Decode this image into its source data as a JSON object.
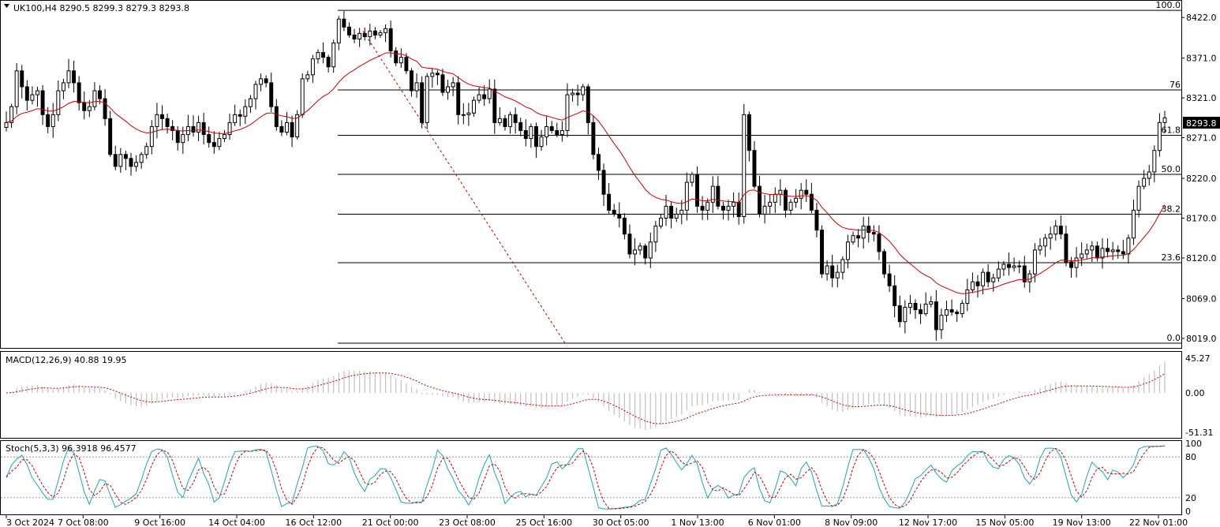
{
  "symbol_header": "UK100,H4  8290.5 8299.3 8279.3 8293.8",
  "macd_header": "MACD(12,26,9) 40.88 19.95",
  "stoch_header": "Stoch(5,3,3) 96.3918 96.4577",
  "current_price_label": "8293.8",
  "colors": {
    "background": "#ffffff",
    "bull_candle": "#ffffff",
    "bear_candle": "#000000",
    "moving_average": "#cc0000",
    "macd_histogram": "#c0c0c0",
    "macd_signal": "#cc0000",
    "stoch_main": "#1aa6b7",
    "stoch_signal": "#cc0000",
    "fib_lines": "#000000"
  },
  "chart_data": [
    {
      "type": "candlestick",
      "title": "UK100,H4",
      "price_ticks": [
        "8422.0",
        "8371.0",
        "8321.0",
        "8271.0",
        "8220.0",
        "8170.0",
        "8120.0",
        "8069.0",
        "8019.0"
      ],
      "price_tick_values": [
        8422.0,
        8371.0,
        8321.0,
        8271.0,
        8220.0,
        8170.0,
        8120.0,
        8069.0,
        8019.0
      ],
      "ylim": [
        8010,
        8440
      ],
      "x_ticks": [
        "3 Oct 2024",
        "7 Oct 08:00",
        "9 Oct 16:00",
        "14 Oct 04:00",
        "16 Oct 12:00",
        "21 Oct 00:00",
        "23 Oct 08:00",
        "25 Oct 16:00",
        "30 Oct 05:00",
        "1 Nov 13:00",
        "6 Nov 01:00",
        "8 Nov 09:00",
        "12 Nov 17:00",
        "15 Nov 05:00",
        "19 Nov 13:00",
        "22 Nov 01:00"
      ],
      "fibonacci": {
        "levels": [
          {
            "label": "100.0",
            "price": 8431
          },
          {
            "label": "76",
            "price": 8331
          },
          {
            "label": "61.8",
            "price": 8274
          },
          {
            "label": "50.0",
            "price": 8225
          },
          {
            "label": "38.2",
            "price": 8175
          },
          {
            "label": "23.6",
            "price": 8114
          },
          {
            "label": "0.0",
            "price": 8013
          }
        ]
      },
      "closes": [
        8290,
        8310,
        8355,
        8335,
        8318,
        8325,
        8330,
        8300,
        8285,
        8300,
        8330,
        8340,
        8355,
        8340,
        8315,
        8305,
        8310,
        8330,
        8320,
        8295,
        8250,
        8235,
        8250,
        8245,
        8235,
        8240,
        8250,
        8260,
        8285,
        8300,
        8295,
        8285,
        8280,
        8265,
        8275,
        8285,
        8278,
        8290,
        8275,
        8265,
        8260,
        8270,
        8275,
        8290,
        8300,
        8298,
        8310,
        8320,
        8338,
        8345,
        8340,
        8310,
        8285,
        8278,
        8290,
        8272,
        8300,
        8345,
        8350,
        8370,
        8378,
        8372,
        8360,
        8390,
        8420,
        8410,
        8400,
        8395,
        8402,
        8398,
        8405,
        8400,
        8403,
        8408,
        8380,
        8365,
        8372,
        8355,
        8330,
        8340,
        8290,
        8348,
        8352,
        8350,
        8328,
        8335,
        8340,
        8300,
        8300,
        8302,
        8318,
        8325,
        8320,
        8332,
        8290,
        8295,
        8285,
        8300,
        8290,
        8280,
        8270,
        8285,
        8260,
        8272,
        8285,
        8280,
        8275,
        8280,
        8325,
        8327,
        8325,
        8335,
        8290,
        8250,
        8230,
        8200,
        8180,
        8175,
        8170,
        8150,
        8125,
        8130,
        8135,
        8120,
        8140,
        8160,
        8170,
        8185,
        8170,
        8175,
        8180,
        8215,
        8225,
        8185,
        8180,
        8190,
        8210,
        8185,
        8180,
        8185,
        8190,
        8172,
        8300,
        8255,
        8210,
        8175,
        8185,
        8190,
        8200,
        8205,
        8180,
        8190,
        8195,
        8205,
        8200,
        8180,
        8155,
        8100,
        8110,
        8095,
        8102,
        8118,
        8140,
        8148,
        8145,
        8160,
        8152,
        8150,
        8128,
        8100,
        8085,
        8060,
        8040,
        8058,
        8063,
        8055,
        8050,
        8062,
        8065,
        8030,
        8048,
        8055,
        8052,
        8050,
        8063,
        8080,
        8090,
        8085,
        8102,
        8090,
        8095,
        8106,
        8112,
        8108,
        8110,
        8110,
        8090,
        8100,
        8130,
        8135,
        8145,
        8150,
        8160,
        8150,
        8115,
        8108,
        8120,
        8125,
        8130,
        8135,
        8120,
        8132,
        8128,
        8130,
        8128,
        8125,
        8145,
        8180,
        8210,
        8220,
        8228,
        8255,
        8290,
        8296
      ]
    },
    {
      "type": "bar",
      "title": "MACD(12,26,9)",
      "value_ticks": [
        "45.27",
        "0.00",
        "-51.31"
      ],
      "value_tick_values": [
        45.27,
        0,
        -51.31
      ],
      "ylim": [
        -51.31,
        45.27
      ],
      "main": 40.88,
      "signal": 19.95
    },
    {
      "type": "line",
      "title": "Stoch(5,3,3)",
      "value_ticks": [
        "100",
        "80",
        "20",
        "0"
      ],
      "value_tick_values": [
        100,
        80,
        20,
        0
      ],
      "ylim": [
        0,
        100
      ],
      "main": 96.3918,
      "signal": 96.4577
    }
  ]
}
